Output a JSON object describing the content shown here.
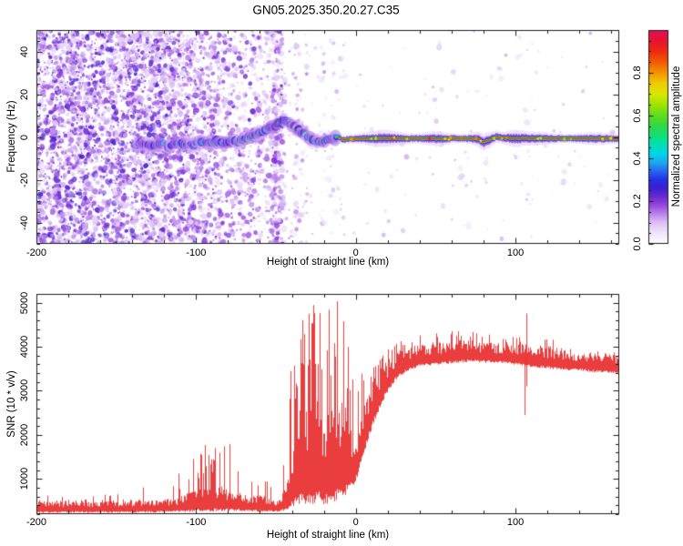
{
  "figure": {
    "background": "#ffffff",
    "axis_color": "#1c1c1c",
    "text_color": "#000000"
  },
  "chart_data": [
    {
      "type": "heatmap",
      "title": "GN05.2025.350.20.27.C35",
      "xlabel": "Height of straight line (km)",
      "ylabel": "Frequency (Hz)",
      "xlim": [
        -200,
        165
      ],
      "ylim": [
        -50,
        50
      ],
      "x_ticks": [
        -200,
        -100,
        0,
        100
      ],
      "x_tick_labels": [
        "-200",
        "-100",
        "0",
        "100"
      ],
      "x_minor_step": 20,
      "y_ticks": [
        40,
        20,
        0,
        -20,
        -40
      ],
      "y_tick_labels": [
        "40",
        "20",
        "0",
        "-20",
        "-40"
      ],
      "y_minor_step": 5,
      "grid": false,
      "colorbar": {
        "label": "Normalized spectral amplitude",
        "range": [
          0,
          1
        ],
        "ticks": [
          0.0,
          0.2,
          0.4,
          0.6,
          0.8
        ],
        "tick_labels": [
          "0.0",
          "0.2",
          "0.4",
          "0.6",
          "0.8"
        ],
        "minor_step": 0.05
      },
      "colormap_stops": [
        [
          0.0,
          "#ffffff"
        ],
        [
          0.05,
          "#f0e6fa"
        ],
        [
          0.1,
          "#dcc0f5"
        ],
        [
          0.14,
          "#b984ea"
        ],
        [
          0.18,
          "#9747dd"
        ],
        [
          0.22,
          "#6a2ad0"
        ],
        [
          0.26,
          "#3c1fd0"
        ],
        [
          0.3,
          "#2430e8"
        ],
        [
          0.34,
          "#2866f0"
        ],
        [
          0.38,
          "#1ba8f0"
        ],
        [
          0.42,
          "#00d4e8"
        ],
        [
          0.46,
          "#00e0b8"
        ],
        [
          0.5,
          "#10e080"
        ],
        [
          0.55,
          "#30d848"
        ],
        [
          0.6,
          "#60dc20"
        ],
        [
          0.65,
          "#9fe400"
        ],
        [
          0.7,
          "#d8e800"
        ],
        [
          0.75,
          "#f0cc00"
        ],
        [
          0.8,
          "#f49400"
        ],
        [
          0.85,
          "#f25a06"
        ],
        [
          0.9,
          "#ee2a10"
        ],
        [
          0.95,
          "#e81330"
        ],
        [
          1.0,
          "#e0105e"
        ]
      ],
      "seed": 20250350,
      "noise_bands": [
        [
          -200,
          -122,
          2900,
          0.07,
          0.26
        ],
        [
          -122,
          -100,
          700,
          0.07,
          0.24
        ],
        [
          -100,
          -85,
          400,
          0.06,
          0.22
        ],
        [
          -85,
          -60,
          430,
          0.06,
          0.22
        ],
        [
          -60,
          -44,
          200,
          0.05,
          0.18
        ],
        [
          -53,
          -46,
          240,
          0.06,
          0.22
        ],
        [
          -44,
          -28,
          90,
          0.05,
          0.16
        ],
        [
          -28,
          -6,
          70,
          0.04,
          0.14
        ],
        [
          -6,
          165,
          140,
          0.04,
          0.12
        ]
      ],
      "trace_points": [
        [
          -140,
          -4.0
        ],
        [
          -134,
          -2.5
        ],
        [
          -128,
          -4.5
        ],
        [
          -122,
          -3.0
        ],
        [
          -116,
          -4.5
        ],
        [
          -110,
          -3.0
        ],
        [
          -104,
          -4.0
        ],
        [
          -98,
          -2.0
        ],
        [
          -93,
          -3.5
        ],
        [
          -88,
          -2.0
        ],
        [
          -83,
          -3.0
        ],
        [
          -78,
          -1.5
        ],
        [
          -73,
          -2.5
        ],
        [
          -68,
          -0.5
        ],
        [
          -63,
          1.0
        ],
        [
          -58,
          2.5
        ],
        [
          -54,
          4.0
        ],
        [
          -50,
          5.5
        ],
        [
          -46,
          7.0
        ],
        [
          -43,
          7.5
        ],
        [
          -40,
          5.5
        ],
        [
          -37,
          3.5
        ],
        [
          -34,
          2.0
        ],
        [
          -30,
          0.5
        ],
        [
          -26,
          -1.5
        ],
        [
          -22,
          -3.0
        ],
        [
          -18,
          -2.0
        ],
        [
          -15,
          -0.5
        ],
        [
          -12,
          0.5
        ],
        [
          -10,
          -0.5
        ],
        [
          -8,
          -1.5
        ],
        [
          -5,
          -1.0
        ],
        [
          0,
          -0.8
        ],
        [
          10,
          -0.8
        ],
        [
          20,
          -0.6
        ],
        [
          30,
          -0.8
        ],
        [
          40,
          -0.7
        ],
        [
          50,
          -0.9
        ],
        [
          60,
          -0.7
        ],
        [
          70,
          -0.8
        ],
        [
          76,
          -1.0
        ],
        [
          80,
          -2.6
        ],
        [
          84,
          -1.2
        ],
        [
          88,
          0.2
        ],
        [
          92,
          -0.4
        ],
        [
          100,
          -0.8
        ],
        [
          110,
          -0.7
        ],
        [
          120,
          -0.8
        ],
        [
          135,
          -0.7
        ],
        [
          150,
          -0.8
        ],
        [
          165,
          -0.8
        ]
      ],
      "stripe_start": -11,
      "stripe_bulges": [
        [
          17,
          13,
          3.0
        ],
        [
          50,
          9,
          2.2
        ],
        [
          80,
          8,
          3.0
        ],
        [
          99,
          7,
          2.5
        ],
        [
          113,
          12,
          1.8
        ],
        [
          150,
          12,
          1.5
        ]
      ]
    },
    {
      "type": "line",
      "xlabel": "Height of straight line (km)",
      "ylabel": "SNR (10 * v/v)",
      "xlim": [
        -200,
        165
      ],
      "ylim": [
        200,
        5200
      ],
      "x_ticks": [
        -200,
        -100,
        0,
        100
      ],
      "x_tick_labels": [
        "-200",
        "-100",
        "0",
        "100"
      ],
      "x_minor_step": 20,
      "y_ticks": [
        1000,
        2000,
        3000,
        4000,
        5000
      ],
      "y_tick_labels": [
        "1000",
        "2000",
        "3000",
        "4000",
        "5000"
      ],
      "y_minor_step": 200,
      "grid": false,
      "line_color": "#e93434",
      "seed": 771717,
      "envelope": [
        [
          -200,
          230,
          520,
          0.05,
          760
        ],
        [
          -150,
          230,
          540,
          0.05,
          800
        ],
        [
          -118,
          240,
          570,
          0.08,
          950
        ],
        [
          -105,
          250,
          680,
          0.18,
          1300
        ],
        [
          -95,
          260,
          820,
          0.3,
          1900
        ],
        [
          -83,
          260,
          860,
          0.3,
          1950
        ],
        [
          -73,
          260,
          720,
          0.2,
          1550
        ],
        [
          -62,
          250,
          660,
          0.15,
          1250
        ],
        [
          -52,
          250,
          560,
          0.1,
          950
        ],
        [
          -47,
          260,
          620,
          0.15,
          1500
        ],
        [
          -43,
          300,
          950,
          0.3,
          2300
        ],
        [
          -40,
          350,
          1600,
          0.45,
          4300
        ],
        [
          -36,
          400,
          2600,
          0.5,
          5200
        ],
        [
          -30,
          420,
          2900,
          0.55,
          5200
        ],
        [
          -25,
          450,
          3000,
          0.5,
          5200
        ],
        [
          -20,
          420,
          2500,
          0.5,
          4700
        ],
        [
          -15,
          420,
          2700,
          0.5,
          5200
        ],
        [
          -11,
          500,
          2900,
          0.5,
          5200
        ],
        [
          -7,
          600,
          2700,
          0.42,
          4500
        ],
        [
          -3,
          750,
          2300,
          0.32,
          3700
        ],
        [
          0,
          950,
          2100,
          0.3,
          3100
        ],
        [
          4,
          1450,
          2700,
          0.3,
          3500
        ],
        [
          8,
          1950,
          3050,
          0.3,
          3650
        ],
        [
          13,
          2450,
          3450,
          0.28,
          3850
        ],
        [
          18,
          2850,
          3650,
          0.25,
          4000
        ],
        [
          25,
          3250,
          3880,
          0.22,
          4150
        ],
        [
          32,
          3450,
          3980,
          0.2,
          4250
        ],
        [
          40,
          3550,
          4080,
          0.18,
          4320
        ],
        [
          55,
          3600,
          4130,
          0.15,
          4380
        ],
        [
          70,
          3650,
          4180,
          0.12,
          4350
        ],
        [
          90,
          3620,
          4120,
          0.1,
          4280
        ],
        [
          104,
          3570,
          4070,
          0.1,
          4220
        ],
        [
          112,
          3520,
          4070,
          0.1,
          4330
        ],
        [
          130,
          3470,
          3970,
          0.1,
          4180
        ],
        [
          150,
          3420,
          3920,
          0.08,
          4120
        ],
        [
          165,
          3380,
          3870,
          0.08,
          4060
        ]
      ],
      "events": [
        {
          "h": 105.5,
          "lo": 2450,
          "hi": 3950
        },
        {
          "h": 107.0,
          "lo": 3100,
          "hi": 4760
        }
      ]
    }
  ]
}
